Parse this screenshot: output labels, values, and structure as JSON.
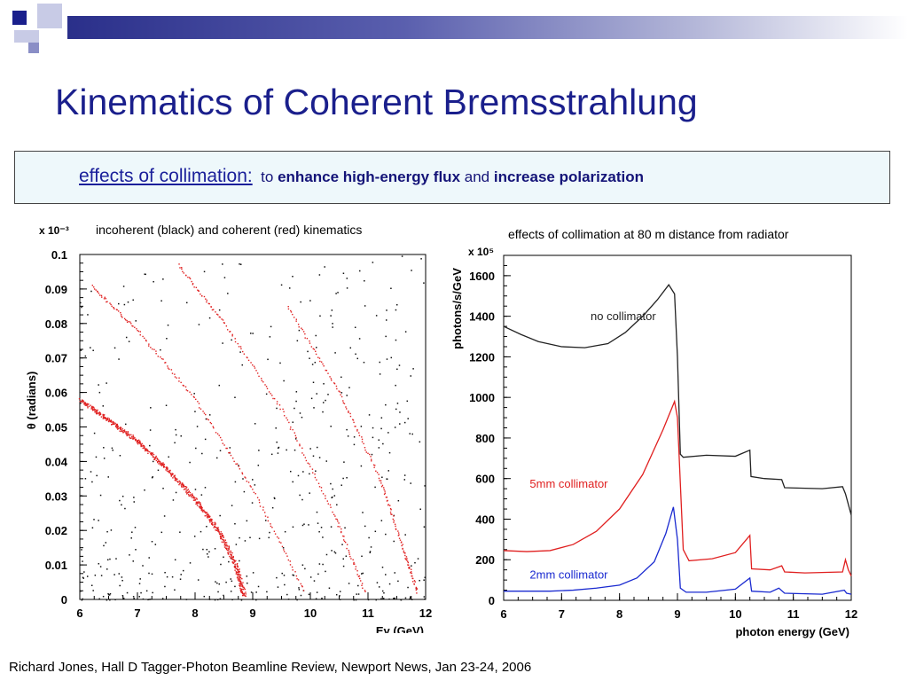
{
  "title": "Kinematics of Coherent Bremsstrahlung",
  "banner": {
    "lead": "effects of collimation:",
    "w1": "to",
    "b1": "enhance high-energy flux",
    "w2": "and",
    "b2": "increase polarization"
  },
  "left_caption": "incoherent (black) and coherent (red) kinematics",
  "right_caption": "effects of collimation at 80 m distance from radiator",
  "footer": "Richard Jones, Hall D Tagger-Photon Beamline Review, Newport News, Jan 23-24, 2006",
  "colors": {
    "title": "#1a1f8c",
    "banner_bg": "#eef8fb",
    "accent": "#2a2f8a"
  },
  "chart_data": [
    {
      "type": "scatter",
      "scale_label": "x 10⁻³",
      "xlabel": "Eγ (GeV)",
      "ylabel": "θ (radians)",
      "xlim": [
        6,
        12
      ],
      "ylim": [
        0,
        0.1
      ],
      "x_ticks": [
        6,
        7,
        8,
        9,
        10,
        11,
        12
      ],
      "y_ticks": [
        0,
        0.01,
        0.02,
        0.03,
        0.04,
        0.05,
        0.06,
        0.07,
        0.08,
        0.09,
        0.1
      ],
      "series": [
        {
          "color": "#e02020",
          "x": [
            6.0,
            6.5,
            7.0,
            7.5,
            8.0,
            8.4,
            8.7,
            8.85
          ],
          "y": [
            0.058,
            0.052,
            0.046,
            0.038,
            0.029,
            0.02,
            0.01,
            0.001
          ]
        },
        {
          "color": "#e02020",
          "x": [
            6.2,
            7.0,
            8.0,
            9.0,
            9.9
          ],
          "y": [
            0.091,
            0.078,
            0.058,
            0.032,
            0.002
          ]
        },
        {
          "color": "#e02020",
          "x": [
            7.7,
            8.5,
            9.5,
            10.4,
            10.95
          ],
          "y": [
            0.097,
            0.08,
            0.055,
            0.025,
            0.002
          ]
        },
        {
          "color": "#e02020",
          "x": [
            9.6,
            10.5,
            11.2,
            11.6,
            11.85
          ],
          "y": [
            0.085,
            0.06,
            0.035,
            0.015,
            0.002
          ]
        }
      ]
    },
    {
      "type": "line",
      "scale_label": "x 10⁵",
      "xlabel": "photon energy (GeV)",
      "ylabel": "photons/s/GeV",
      "xlim": [
        6,
        12
      ],
      "ylim": [
        0,
        1700
      ],
      "x_ticks": [
        6,
        7,
        8,
        9,
        10,
        11,
        12
      ],
      "y_ticks": [
        0,
        200,
        400,
        600,
        800,
        1000,
        1200,
        1400,
        1600
      ],
      "series": [
        {
          "name": "no collimator",
          "color": "#222222",
          "x": [
            6.0,
            6.3,
            6.6,
            7.0,
            7.4,
            7.8,
            8.1,
            8.4,
            8.65,
            8.85,
            8.95,
            9.0,
            9.05,
            9.1,
            9.5,
            10.0,
            10.25,
            10.27,
            10.5,
            10.8,
            10.85,
            11.5,
            11.85,
            11.9,
            12.0
          ],
          "y": [
            1350,
            1310,
            1275,
            1250,
            1245,
            1265,
            1320,
            1400,
            1480,
            1555,
            1510,
            1200,
            720,
            705,
            715,
            710,
            740,
            610,
            600,
            595,
            555,
            550,
            560,
            525,
            420
          ]
        },
        {
          "name": "5mm collimator",
          "color": "#e02020",
          "x": [
            6.0,
            6.4,
            6.8,
            7.2,
            7.6,
            8.0,
            8.4,
            8.75,
            8.95,
            9.0,
            9.1,
            9.2,
            9.6,
            10.0,
            10.25,
            10.28,
            10.6,
            10.8,
            10.85,
            11.2,
            11.85,
            11.9,
            11.95,
            12.0
          ],
          "y": [
            245,
            240,
            245,
            275,
            340,
            450,
            620,
            840,
            980,
            900,
            250,
            195,
            205,
            235,
            320,
            155,
            150,
            170,
            140,
            135,
            140,
            200,
            150,
            120
          ]
        },
        {
          "name": "2mm collimator",
          "color": "#1a2ad0",
          "x": [
            6.0,
            6.4,
            6.8,
            7.2,
            7.6,
            8.0,
            8.3,
            8.6,
            8.8,
            8.93,
            9.0,
            9.05,
            9.15,
            9.5,
            10.0,
            10.25,
            10.28,
            10.6,
            10.75,
            10.85,
            11.5,
            11.88,
            11.92,
            12.0
          ],
          "y": [
            45,
            45,
            45,
            50,
            60,
            75,
            110,
            190,
            330,
            460,
            300,
            60,
            40,
            40,
            55,
            110,
            45,
            40,
            60,
            35,
            30,
            50,
            35,
            30
          ]
        }
      ]
    }
  ]
}
